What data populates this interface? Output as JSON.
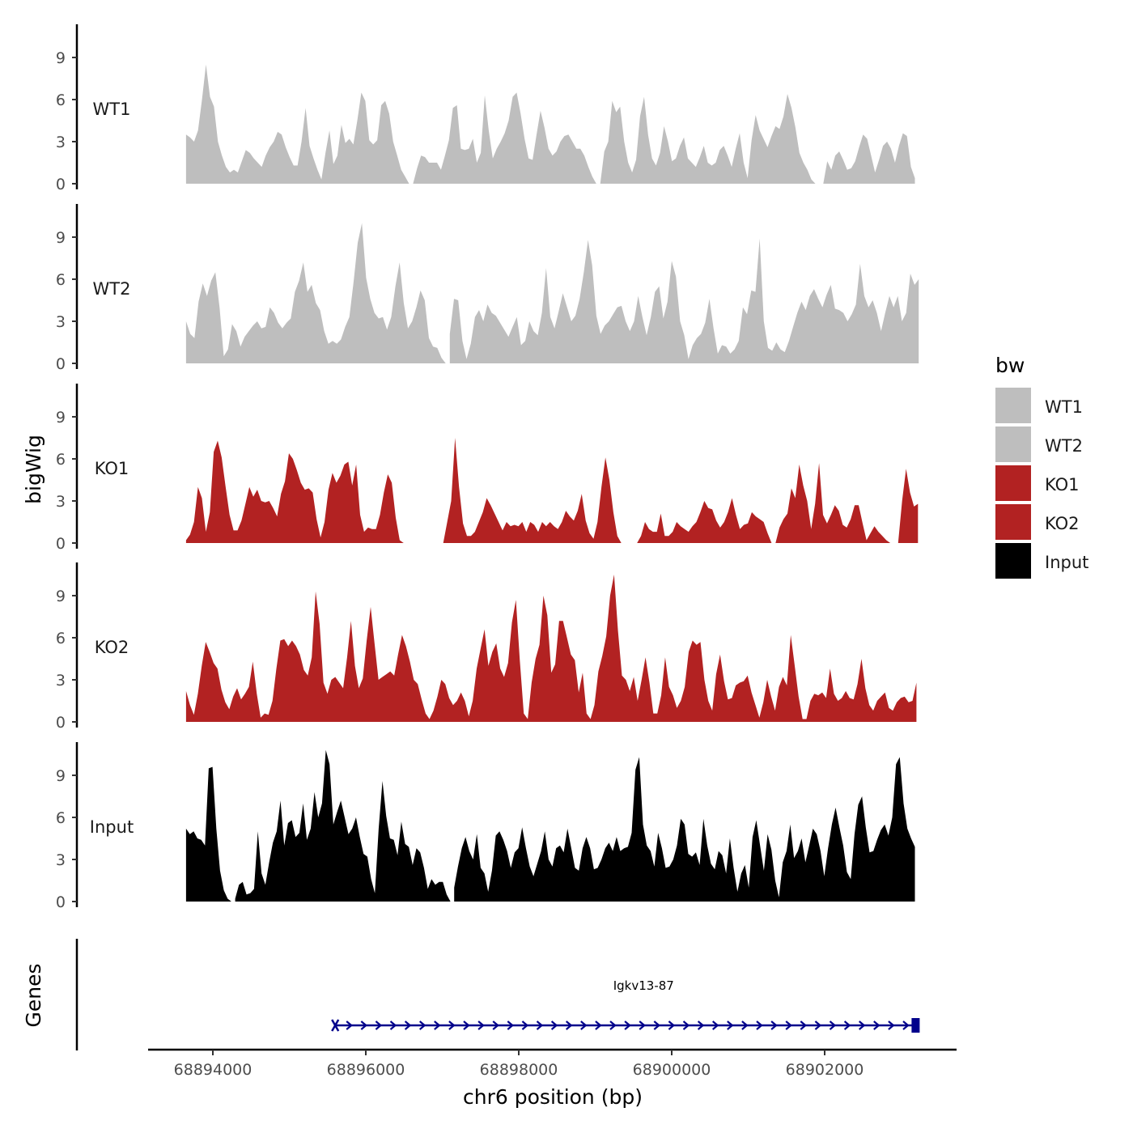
{
  "chart_data": {
    "type": "area",
    "chrom": "chr6",
    "ylabel": "bigWig",
    "xlabel": "chr6 position (bp)",
    "xlim": [
      68893000,
      68903800
    ],
    "ylim": [
      0,
      11.5
    ],
    "y_ticks": [
      0,
      3,
      6,
      9
    ],
    "x_ticks": [
      68894000,
      68896000,
      68898000,
      68900000,
      68902000
    ],
    "x_tick_labels": [
      "68894000",
      "68896000",
      "68898000",
      "68900000",
      "68902000"
    ],
    "legend": {
      "title": "bw",
      "position": "right",
      "entries": [
        {
          "name": "WT1",
          "color": "#bebebe"
        },
        {
          "name": "WT2",
          "color": "#bebebe"
        },
        {
          "name": "KO1",
          "color": "#b22222"
        },
        {
          "name": "KO2",
          "color": "#b22222"
        },
        {
          "name": "Input",
          "color": "#000000"
        }
      ]
    },
    "series": [
      {
        "name": "WT1",
        "color": "#bebebe",
        "x_start": 68893650,
        "x_end": 68903180,
        "values": [
          3.5,
          3.3,
          3.0,
          3.8,
          6.0,
          8.5,
          6.2,
          5.5,
          3.0,
          2.0,
          1.2,
          0.8,
          1.0,
          0.8,
          1.6,
          2.4,
          2.2,
          1.8,
          1.5,
          1.2,
          2.0,
          2.6,
          3.0,
          3.7,
          3.5,
          2.6,
          1.9,
          1.3,
          1.3,
          3.0,
          5.4,
          2.7,
          1.8,
          1.0,
          0.3,
          2.2,
          3.8,
          1.4,
          2.0,
          4.2,
          2.9,
          3.2,
          2.8,
          4.5,
          6.5,
          5.9,
          3.1,
          2.8,
          3.1,
          5.6,
          5.9,
          5.0,
          3.0,
          2.0,
          1.0,
          0.5,
          0,
          0,
          1.1,
          2.0,
          1.9,
          1.5,
          1.5,
          1.5,
          1.0,
          2.0,
          3.1,
          5.4,
          5.6,
          2.5,
          2.4,
          2.5,
          3.2,
          1.5,
          2.2,
          6.3,
          3.8,
          1.8,
          2.5,
          3.0,
          3.6,
          4.5,
          6.2,
          6.5,
          5.0,
          3.2,
          1.8,
          1.7,
          3.5,
          5.2,
          4.0,
          2.5,
          2.0,
          2.3,
          3.0,
          3.4,
          3.5,
          3.0,
          2.5,
          2.5,
          2.0,
          1.2,
          0.5,
          0,
          0,
          2.3,
          3.0,
          5.9,
          5.1,
          5.5,
          3.0,
          1.5,
          0.8,
          1.7,
          4.8,
          6.2,
          3.5,
          1.8,
          1.3,
          2.2,
          4.1,
          3.0,
          1.6,
          1.8,
          2.7,
          3.3,
          1.8,
          1.5,
          1.2,
          1.9,
          2.7,
          1.5,
          1.3,
          1.5,
          2.4,
          2.7,
          2.0,
          1.2,
          2.5,
          3.6,
          1.5,
          0.4,
          3.1,
          4.9,
          3.8,
          3.2,
          2.6,
          3.4,
          4.1,
          3.9,
          4.8,
          6.4,
          5.4,
          4.0,
          2.2,
          1.5,
          1.0,
          0.3,
          0,
          0,
          0,
          1.6,
          1.0,
          2.0,
          2.3,
          1.7,
          1.0,
          1.1,
          1.6,
          2.6,
          3.5,
          3.2,
          2.0,
          0.8,
          1.7,
          2.7,
          3.0,
          2.5,
          1.5,
          2.7,
          3.6,
          3.4,
          1.2,
          0.4
        ]
      },
      {
        "name": "WT2",
        "color": "#bebebe",
        "x_start": 68893650,
        "x_end": 68903230,
        "values": [
          3.0,
          2.1,
          1.8,
          4.4,
          5.7,
          4.8,
          5.9,
          6.5,
          4.0,
          0.5,
          1.0,
          2.8,
          2.3,
          1.2,
          1.9,
          2.3,
          2.7,
          3.0,
          2.5,
          2.6,
          4.0,
          3.6,
          2.9,
          2.5,
          2.9,
          3.2,
          5.1,
          5.9,
          7.2,
          5.1,
          5.6,
          4.3,
          3.8,
          2.3,
          1.4,
          1.6,
          1.4,
          1.7,
          2.6,
          3.3,
          5.8,
          8.6,
          10.0,
          6.1,
          4.6,
          3.6,
          3.2,
          3.3,
          2.4,
          3.3,
          5.5,
          7.2,
          4.3,
          2.5,
          3.0,
          4.0,
          5.2,
          4.5,
          1.8,
          1.2,
          1.1,
          0.4,
          0,
          2.1,
          4.6,
          4.5,
          1.6,
          0.3,
          1.4,
          3.3,
          3.8,
          3.0,
          4.2,
          3.6,
          3.4,
          2.9,
          2.4,
          1.9,
          2.6,
          3.3,
          1.3,
          1.6,
          3.0,
          2.3,
          2.0,
          3.6,
          6.8,
          3.3,
          2.5,
          3.7,
          5.0,
          4.0,
          3.0,
          3.4,
          4.6,
          6.5,
          8.8,
          7.0,
          3.4,
          2.1,
          2.7,
          3.0,
          3.5,
          4.0,
          4.1,
          3.0,
          2.3,
          3.0,
          4.8,
          3.3,
          2.0,
          3.3,
          5.1,
          5.5,
          3.2,
          4.4,
          7.3,
          6.2,
          3.0,
          2.0,
          0.3,
          1.3,
          1.8,
          2.1,
          2.9,
          4.6,
          2.5,
          0.7,
          1.3,
          1.2,
          0.7,
          1.0,
          1.6,
          4.0,
          3.5,
          5.2,
          5.1,
          8.9,
          3.0,
          1.1,
          0.9,
          1.5,
          1.0,
          0.8,
          1.6,
          2.6,
          3.6,
          4.4,
          3.8,
          4.8,
          5.3,
          4.6,
          4.0,
          4.9,
          5.6,
          3.9,
          3.8,
          3.6,
          3.0,
          3.5,
          4.2,
          7.1,
          4.8,
          4.0,
          4.5,
          3.6,
          2.3,
          3.6,
          4.8,
          4.0,
          4.8,
          3.0,
          3.6,
          6.4,
          5.6,
          6.0
        ]
      },
      {
        "name": "KO1",
        "color": "#b22222",
        "x_start": 68893650,
        "x_end": 68903220,
        "values": [
          0.2,
          0.6,
          1.5,
          4.0,
          3.2,
          0.8,
          2.2,
          6.5,
          7.3,
          6.1,
          4.0,
          2.0,
          0.9,
          0.9,
          1.6,
          2.8,
          4.0,
          3.3,
          3.8,
          3.0,
          2.9,
          3.0,
          2.5,
          1.9,
          3.5,
          4.4,
          6.4,
          6.0,
          5.2,
          4.3,
          3.8,
          3.9,
          3.6,
          1.7,
          0.4,
          1.5,
          3.8,
          5.0,
          4.3,
          4.8,
          5.6,
          5.8,
          4.1,
          5.6,
          2.0,
          0.8,
          1.1,
          1.0,
          1.0,
          2.0,
          3.6,
          4.9,
          4.3,
          1.8,
          0.2,
          0,
          0,
          0,
          0,
          0,
          0,
          0,
          0,
          0,
          0,
          0,
          1.5,
          3.0,
          7.5,
          4.0,
          1.4,
          0.5,
          0.5,
          0.8,
          1.5,
          2.2,
          3.2,
          2.7,
          2.1,
          1.5,
          0.9,
          1.5,
          1.2,
          1.3,
          1.2,
          1.5,
          0.8,
          1.5,
          1.3,
          0.8,
          1.5,
          1.2,
          1.5,
          1.2,
          1.0,
          1.5,
          2.3,
          1.9,
          1.6,
          2.3,
          3.5,
          1.6,
          0.7,
          0.3,
          1.5,
          4.0,
          6.1,
          4.5,
          2.2,
          0.5,
          0,
          0,
          0,
          0,
          0,
          0.5,
          1.5,
          1.0,
          0.8,
          0.8,
          2.1,
          0.5,
          0.5,
          0.8,
          1.5,
          1.2,
          1.0,
          0.8,
          1.2,
          1.5,
          2.2,
          3.0,
          2.5,
          2.4,
          1.6,
          1.1,
          1.5,
          2.2,
          3.2,
          2.0,
          1.0,
          1.3,
          1.4,
          2.2,
          1.9,
          1.7,
          1.5,
          0.7,
          0,
          0,
          1.1,
          1.7,
          2.1,
          3.9,
          3.2,
          5.6,
          4.1,
          3.0,
          1.0,
          2.8,
          5.7,
          2.0,
          1.4,
          2.0,
          2.7,
          2.3,
          1.3,
          1.1,
          1.7,
          2.7,
          2.7,
          1.4,
          0.2,
          0.7,
          1.2,
          0.8,
          0.5,
          0.2,
          0,
          0,
          0,
          3.0,
          5.3,
          3.6,
          2.6,
          2.8
        ]
      },
      {
        "name": "KO2",
        "color": "#b22222",
        "x_start": 68893650,
        "x_end": 68903200,
        "values": [
          2.2,
          1.2,
          0.5,
          2.0,
          4.0,
          5.7,
          5.0,
          4.2,
          3.8,
          2.3,
          1.4,
          0.9,
          1.8,
          2.4,
          1.6,
          2.0,
          2.5,
          4.3,
          2.0,
          0.3,
          0.6,
          0.5,
          1.5,
          3.8,
          5.8,
          5.9,
          5.4,
          5.8,
          5.4,
          4.8,
          3.7,
          3.3,
          4.6,
          9.3,
          7.0,
          2.8,
          2.0,
          3.0,
          3.2,
          2.8,
          2.4,
          4.6,
          7.2,
          4.0,
          2.4,
          3.1,
          5.8,
          8.2,
          5.6,
          3.0,
          3.2,
          3.4,
          3.6,
          3.3,
          4.8,
          6.2,
          5.4,
          4.3,
          3.0,
          2.7,
          1.6,
          0.6,
          0.2,
          0.8,
          1.8,
          3.0,
          2.7,
          1.7,
          1.2,
          1.5,
          2.1,
          1.5,
          0.4,
          1.5,
          3.8,
          5.2,
          6.6,
          4.0,
          5.0,
          5.6,
          3.8,
          3.2,
          4.2,
          7.1,
          8.7,
          4.4,
          0.6,
          0.2,
          2.8,
          4.5,
          5.5,
          9.0,
          7.6,
          3.5,
          4.1,
          7.2,
          7.2,
          6.0,
          4.8,
          4.4,
          2.1,
          3.5,
          0.6,
          0.2,
          1.2,
          3.6,
          4.7,
          6.1,
          9.0,
          10.5,
          6.5,
          3.3,
          3.0,
          2.2,
          3.2,
          1.5,
          3.0,
          4.6,
          2.8,
          0.6,
          0.6,
          1.9,
          4.6,
          2.5,
          1.9,
          1.0,
          1.5,
          2.5,
          5.0,
          5.8,
          5.5,
          5.7,
          3.0,
          1.5,
          0.8,
          3.4,
          4.8,
          2.9,
          1.6,
          1.7,
          2.6,
          2.8,
          2.9,
          3.3,
          2.1,
          1.2,
          0.3,
          1.4,
          3.0,
          1.8,
          0.8,
          2.5,
          3.2,
          2.6,
          6.2,
          4.0,
          1.8,
          0.2,
          0.2,
          1.5,
          2.0,
          1.9,
          2.1,
          1.7,
          3.8,
          2.0,
          1.5,
          1.7,
          2.2,
          1.7,
          1.6,
          2.7,
          4.5,
          2.4,
          1.2,
          0.8,
          1.5,
          1.8,
          2.1,
          1.0,
          0.8,
          1.4,
          1.7,
          1.8,
          1.4,
          1.5,
          2.8
        ]
      },
      {
        "name": "Input",
        "color": "#000000",
        "x_start": 68893650,
        "x_end": 68903180,
        "values": [
          5.2,
          4.8,
          5.0,
          4.5,
          4.4,
          4.0,
          9.5,
          9.6,
          5.2,
          2.2,
          0.8,
          0.2,
          0,
          0.2,
          1.2,
          1.4,
          0.5,
          0.6,
          0.9,
          5.0,
          2.0,
          1.2,
          2.8,
          4.2,
          5.0,
          7.2,
          4.0,
          5.6,
          5.8,
          4.6,
          4.9,
          7.0,
          4.4,
          5.2,
          7.8,
          6.0,
          7.0,
          10.8,
          9.8,
          5.5,
          6.4,
          7.2,
          6.0,
          4.8,
          5.2,
          6.0,
          4.6,
          3.4,
          3.2,
          1.6,
          0.6,
          5.2,
          8.6,
          6.1,
          4.5,
          4.4,
          3.3,
          5.7,
          4.1,
          3.9,
          2.6,
          3.8,
          3.5,
          2.4,
          0.9,
          1.6,
          1.2,
          1.4,
          1.4,
          0.5,
          0,
          1.0,
          2.5,
          3.8,
          4.6,
          3.6,
          3.0,
          4.8,
          2.4,
          2.0,
          0.7,
          2.2,
          4.7,
          5.0,
          4.4,
          3.6,
          2.4,
          3.5,
          3.8,
          5.3,
          3.8,
          2.5,
          1.8,
          2.7,
          3.6,
          5.0,
          3.0,
          2.5,
          3.8,
          4.0,
          3.5,
          5.2,
          3.8,
          2.4,
          2.2,
          3.8,
          4.6,
          3.8,
          2.3,
          2.4,
          3.0,
          3.8,
          4.2,
          3.6,
          4.6,
          3.6,
          3.8,
          3.9,
          4.9,
          9.4,
          10.3,
          5.5,
          4.0,
          3.6,
          2.5,
          4.9,
          3.8,
          2.4,
          2.5,
          3.0,
          4.0,
          5.9,
          5.5,
          3.4,
          3.2,
          3.5,
          2.6,
          5.9,
          4.0,
          2.7,
          2.3,
          3.6,
          3.3,
          2.0,
          4.5,
          2.4,
          0.7,
          2.0,
          2.6,
          1.0,
          4.6,
          5.8,
          4.0,
          2.2,
          4.8,
          3.7,
          1.5,
          0.3,
          2.8,
          3.6,
          5.5,
          3.1,
          3.6,
          4.5,
          2.8,
          4.0,
          5.2,
          4.8,
          3.6,
          1.8,
          3.8,
          5.5,
          6.7,
          5.3,
          4.0,
          2.1,
          1.6,
          4.8,
          6.9,
          7.5,
          5.3,
          3.5,
          3.6,
          4.4,
          5.1,
          5.5,
          4.7,
          6.0,
          9.8,
          10.3,
          7.0,
          5.2,
          4.5,
          3.9
        ]
      }
    ],
    "genes_track": {
      "label": "Genes",
      "genes": [
        {
          "name": "Igkv13-87",
          "start": 68895600,
          "end": 68903200,
          "strand": "+",
          "color": "#00008b"
        }
      ]
    }
  }
}
